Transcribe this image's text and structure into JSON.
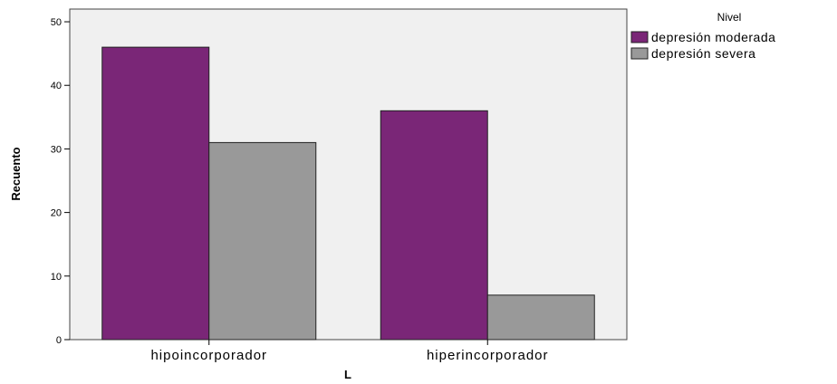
{
  "chart_data": {
    "type": "bar",
    "title": "",
    "xlabel": "L",
    "ylabel": "Recuento",
    "ylim": [
      0,
      52
    ],
    "yticks": [
      0,
      10,
      20,
      30,
      40,
      50
    ],
    "grid": false,
    "legend_position": "right",
    "legend_title": "Nivel",
    "categories": [
      "hipoincorporador",
      "hiperincorporador"
    ],
    "series": [
      {
        "name": "depresión moderada",
        "values": [
          46,
          36
        ],
        "color": "#7a2677"
      },
      {
        "name": "depresión severa",
        "values": [
          31,
          7
        ],
        "color": "#999999"
      }
    ],
    "plot_background": "#f0f0f0"
  }
}
